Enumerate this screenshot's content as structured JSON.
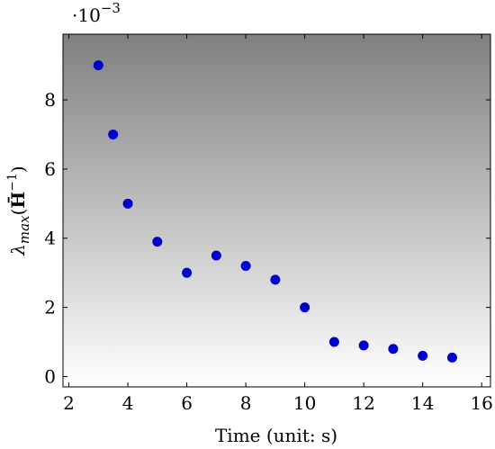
{
  "chart_data": {
    "type": "scatter",
    "title": "",
    "xlabel": "Time (unit: s)",
    "ylabel_base": "λ",
    "ylabel_sub": "max",
    "ylabel_paren_open": "(",
    "ylabel_matrix": "H̄",
    "ylabel_sup": "−1",
    "ylabel_paren_close": ")",
    "y_scale_base": "·10",
    "y_scale_exp": "−3",
    "xlim": [
      1.8,
      16.3
    ],
    "ylim": [
      -0.3,
      9.9
    ],
    "xticks": [
      2,
      4,
      6,
      8,
      10,
      12,
      14,
      16
    ],
    "yticks": [
      0,
      2,
      4,
      6,
      8
    ],
    "marker_color": "#0000cc",
    "background_gradient": [
      "#808080",
      "#ffffff"
    ],
    "grid": false,
    "legend": "none",
    "series": [
      {
        "x": [
          3,
          3.5,
          4,
          5,
          6,
          7,
          8,
          9,
          10,
          11,
          12,
          13,
          14,
          15
        ],
        "y": [
          9.0,
          7.0,
          5.0,
          3.9,
          3.0,
          3.5,
          3.2,
          2.8,
          2.0,
          1.0,
          0.9,
          0.8,
          0.6,
          0.55
        ]
      }
    ]
  }
}
